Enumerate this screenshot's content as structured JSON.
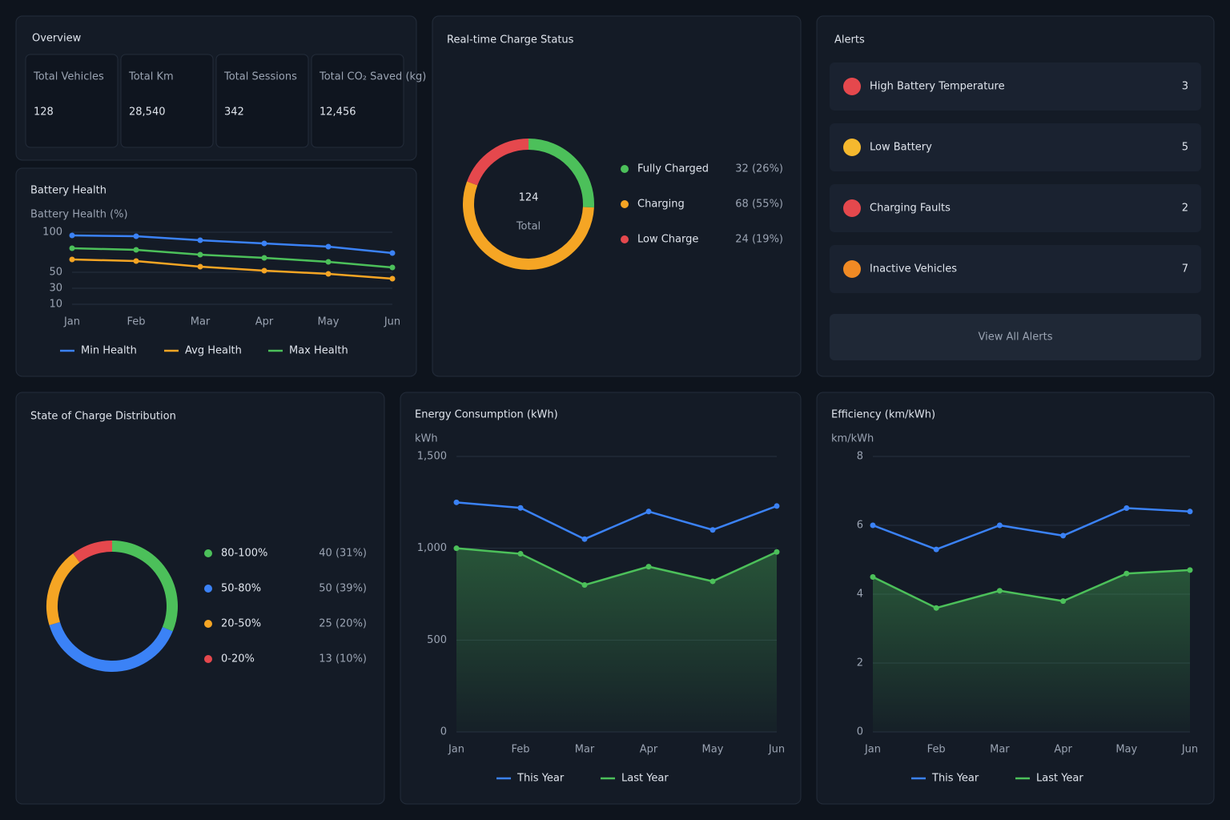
{
  "overview": {
    "title": "Overview",
    "kpis": [
      {
        "label": "Total Vehicles",
        "value": "128"
      },
      {
        "label": "Total Km",
        "value": "28,540"
      },
      {
        "label": "Total Sessions",
        "value": "342"
      },
      {
        "label": "Total CO₂ Saved (kg)",
        "value": "12,456"
      }
    ]
  },
  "alerts": {
    "title": "Alerts",
    "items": [
      {
        "label": "High Battery Temperature",
        "count": 3,
        "color": "#e5484d"
      },
      {
        "label": "Low Battery",
        "count": 5,
        "color": "#f5b82e"
      },
      {
        "label": "Charging Faults",
        "count": 2,
        "color": "#e5484d"
      },
      {
        "label": "Inactive Vehicles",
        "count": 7,
        "color": "#f08a24"
      }
    ],
    "button": "View All Alerts"
  },
  "chart_data": [
    {
      "type": "line",
      "title": "Battery Health",
      "y_label": "Battery Health (%)",
      "categories": [
        "Jan",
        "Feb",
        "Mar",
        "Apr",
        "May",
        "Jun"
      ],
      "series": [
        {
          "name": "Min Health",
          "color": "#3b82f6",
          "values": [
            96,
            95,
            90,
            86,
            82,
            74
          ]
        },
        {
          "name": "Avg Health",
          "color": "#f5a524",
          "values": [
            66,
            64,
            57,
            52,
            48,
            42
          ]
        },
        {
          "name": "Max Health",
          "color": "#4cc05a",
          "values": [
            80,
            78,
            72,
            68,
            63,
            56
          ]
        }
      ],
      "ylim": [
        10,
        100
      ],
      "yticks": [
        10,
        30,
        50,
        100
      ],
      "grid": true
    },
    {
      "type": "donut",
      "title": "Real-time Charge Status",
      "total": 124,
      "total_label": "Total",
      "categories": [
        "Fully Charged",
        "Charging",
        "Low Charge"
      ],
      "values": [
        32,
        68,
        24
      ],
      "value_labels": [
        "32 (26%)",
        "68 (55%)",
        "24 (19%)"
      ],
      "colors": [
        "#4cc05a",
        "#f5a524",
        "#e5484d"
      ]
    },
    {
      "type": "donut",
      "title": "State of Charge Distribution",
      "categories": [
        "80-100%",
        "50-80%",
        "20-50%",
        "0-20%"
      ],
      "values": [
        40,
        50,
        25,
        13
      ],
      "value_labels": [
        "40 (31%)",
        "50 (39%)",
        "25 (20%)",
        "13 (10%)"
      ],
      "colors": [
        "#4cc05a",
        "#3b82f6",
        "#f5a524",
        "#e5484d"
      ]
    },
    {
      "type": "line",
      "title": "Energy Consumption (kWh)",
      "y_label": "kWh",
      "categories": [
        "Jan",
        "Feb",
        "Mar",
        "Apr",
        "May",
        "Jun"
      ],
      "series": [
        {
          "name": "This Year",
          "color": "#3b82f6",
          "values": [
            1250,
            1220,
            1050,
            1200,
            1100,
            1230
          ]
        },
        {
          "name": "Last Year",
          "color": "#4cc05a",
          "values": [
            1000,
            970,
            800,
            900,
            820,
            980
          ]
        }
      ],
      "ylim": [
        0,
        1500
      ],
      "yticks": [
        0,
        500,
        {
          "value": 1000,
          "label": "1,000"
        },
        {
          "value": 1500,
          "label": "1,500"
        }
      ],
      "grid": true,
      "area": true
    },
    {
      "type": "line",
      "title": "Efficiency (km/kWh)",
      "y_label": "km/kWh",
      "categories": [
        "Jan",
        "Feb",
        "Mar",
        "Apr",
        "May",
        "Jun"
      ],
      "series": [
        {
          "name": "This Year",
          "color": "#3b82f6",
          "values": [
            6.0,
            5.3,
            6.0,
            5.7,
            6.5,
            6.4
          ]
        },
        {
          "name": "Last Year",
          "color": "#4cc05a",
          "values": [
            4.5,
            3.6,
            4.1,
            3.8,
            4.6,
            4.7
          ]
        }
      ],
      "ylim": [
        0,
        8
      ],
      "yticks": [
        0,
        2,
        4,
        6,
        8
      ],
      "grid": true,
      "area": true
    }
  ]
}
